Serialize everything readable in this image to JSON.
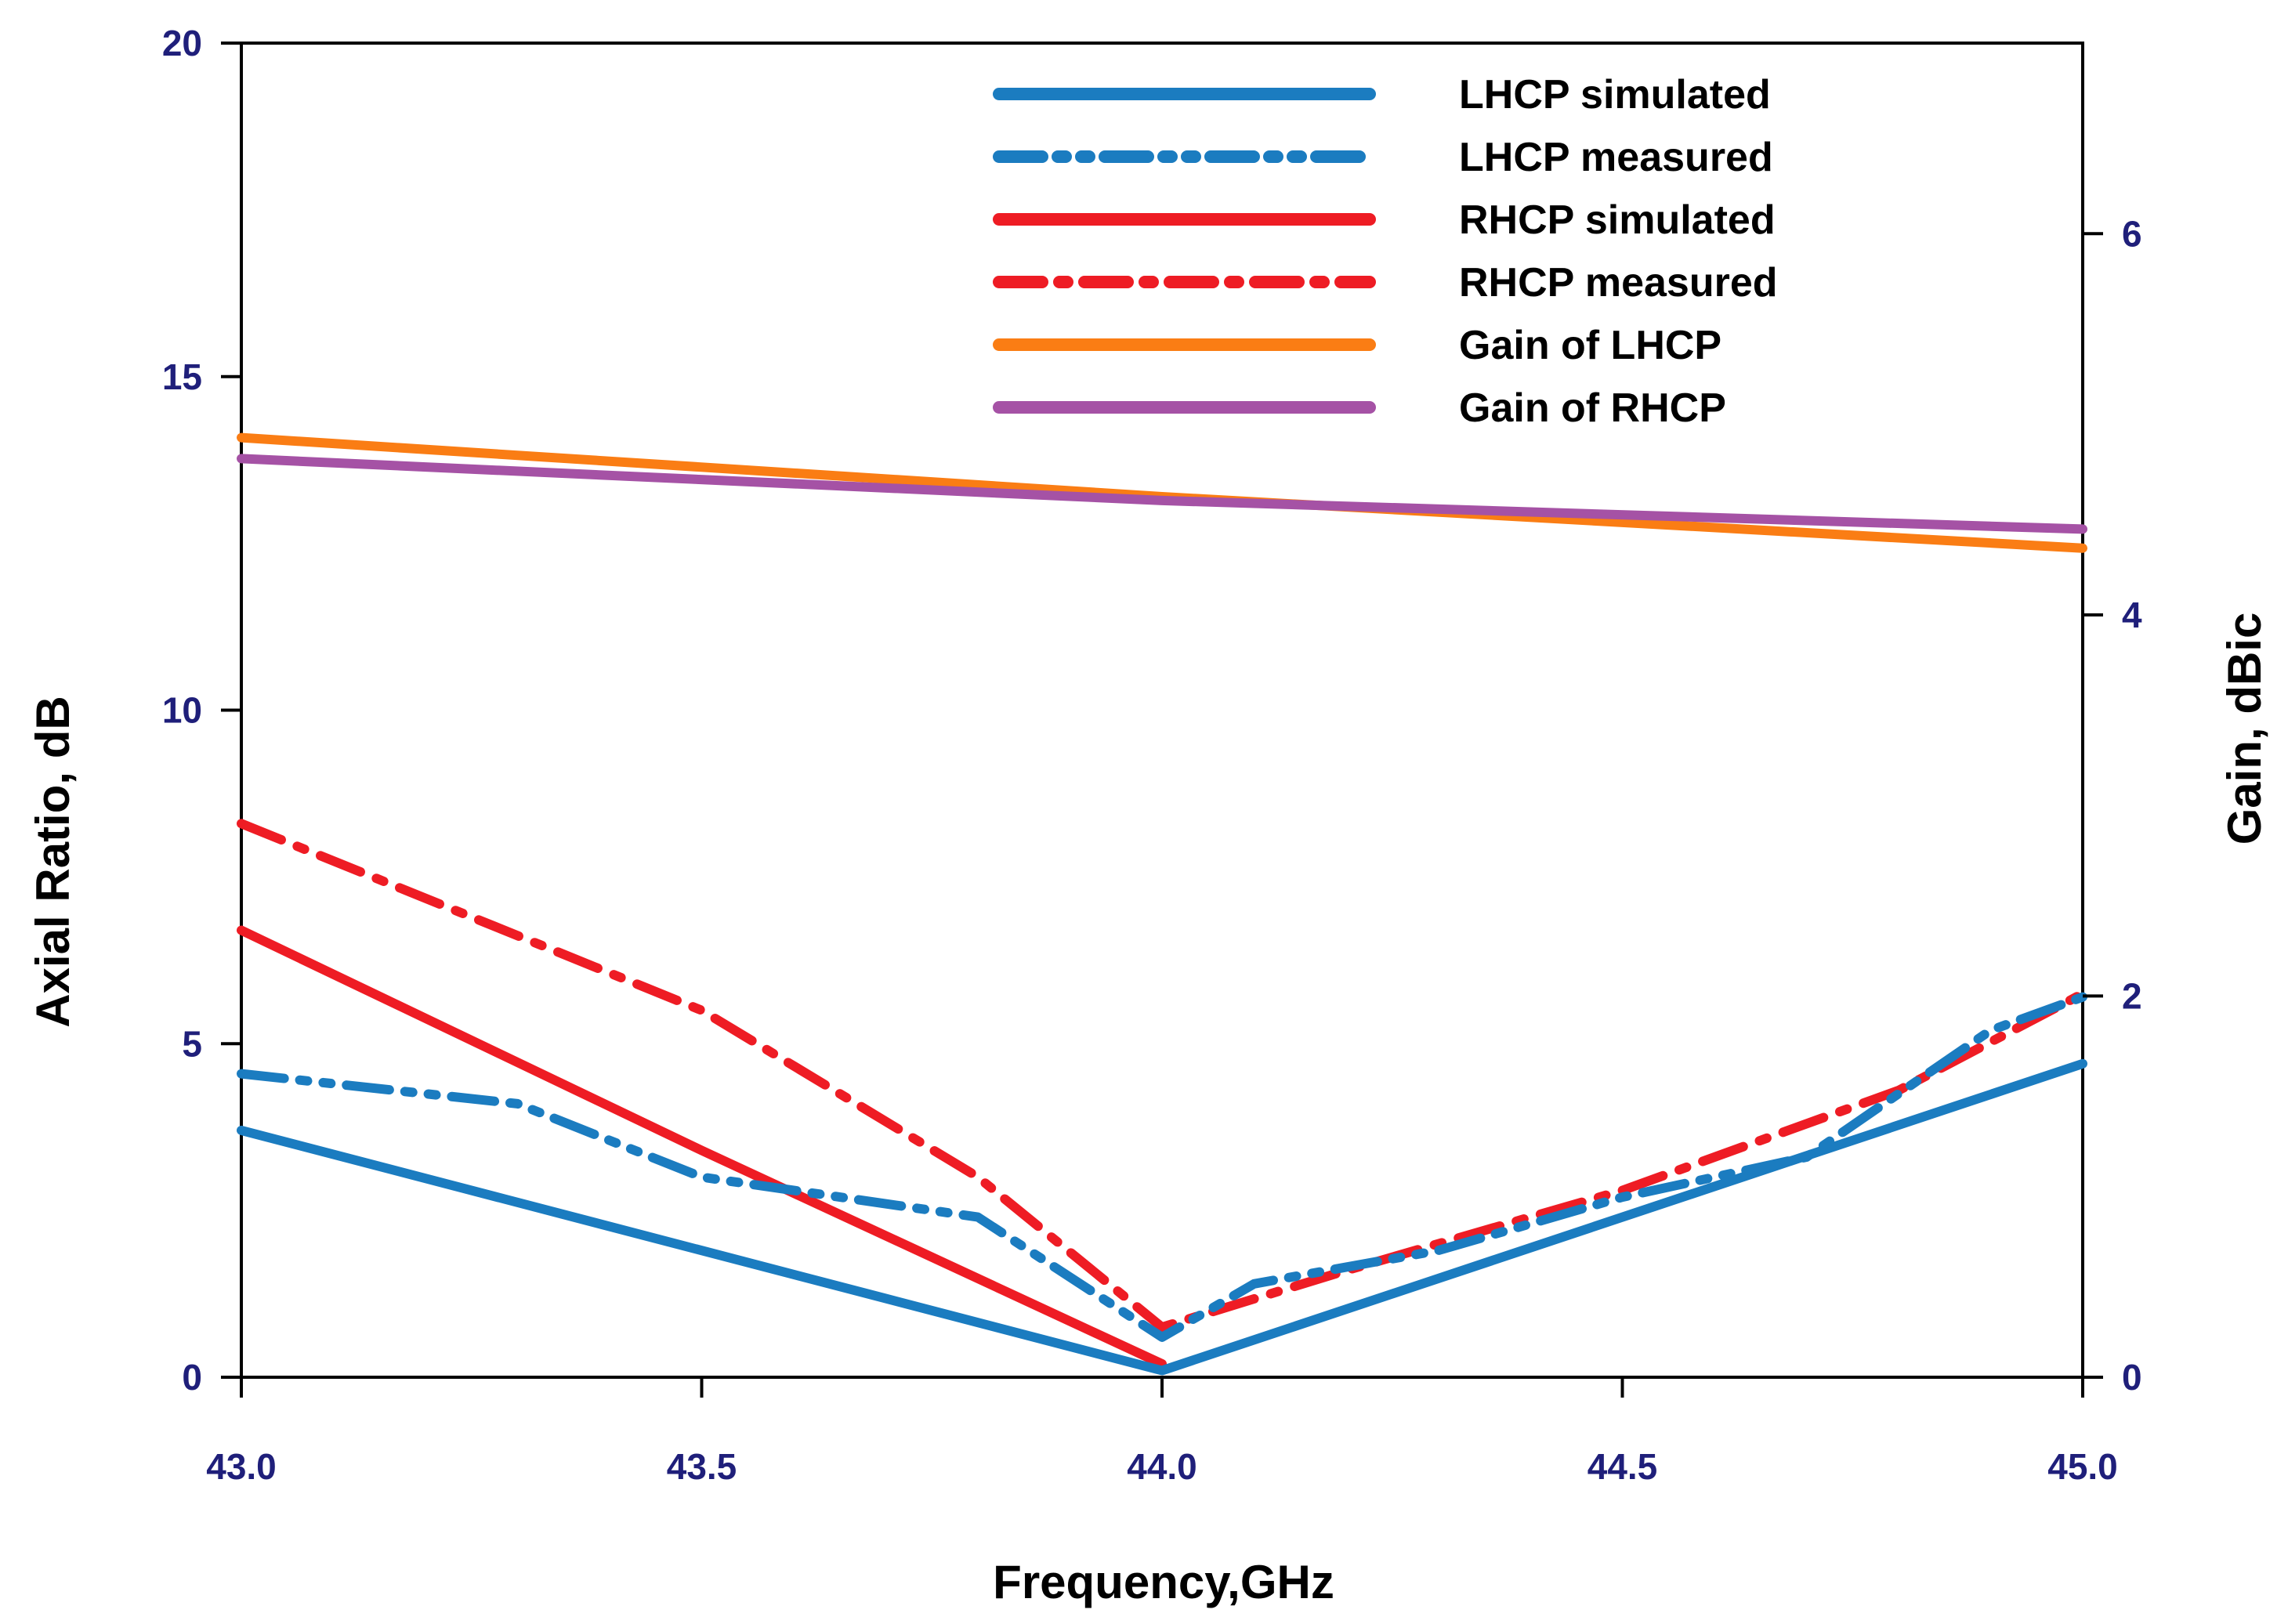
{
  "chart_data": {
    "type": "line",
    "x": [
      43.0,
      43.5,
      44.0,
      44.5,
      45.0
    ],
    "xlim": [
      43.0,
      45.0
    ],
    "xticks": [
      "43.0",
      "43.5",
      "44.0",
      "44.5",
      "45.0"
    ],
    "xlabel": "Frequency,GHz",
    "ylabel_left": "Axial Ratio, dB",
    "ylim_left": [
      0,
      20
    ],
    "yticks_left": [
      "0",
      "5",
      "10",
      "15",
      "20"
    ],
    "ylabel_right": "Gain, dBic",
    "ylim_right": [
      0,
      7
    ],
    "yticks_right": [
      "0",
      "2",
      "4",
      "6"
    ],
    "legend_position": "top-center",
    "series": [
      {
        "name": "LHCP simulated",
        "axis": "left",
        "color": "#1b7cc0",
        "dash": "solid",
        "points": [
          [
            43.0,
            3.7
          ],
          [
            44.0,
            0.1
          ],
          [
            45.0,
            4.7
          ]
        ]
      },
      {
        "name": "LHCP measured",
        "axis": "left",
        "color": "#1b7cc0",
        "dash": "dash-dot-dot",
        "points": [
          [
            43.0,
            4.55
          ],
          [
            43.3,
            4.1
          ],
          [
            43.5,
            3.0
          ],
          [
            43.8,
            2.4
          ],
          [
            44.0,
            0.6
          ],
          [
            44.1,
            1.4
          ],
          [
            44.3,
            1.9
          ],
          [
            44.5,
            2.7
          ],
          [
            44.7,
            3.3
          ],
          [
            44.9,
            5.2
          ],
          [
            45.0,
            5.7
          ]
        ]
      },
      {
        "name": "RHCP simulated",
        "axis": "left",
        "color": "#ee1c24",
        "dash": "solid",
        "points": [
          [
            43.0,
            6.7
          ],
          [
            43.5,
            3.4
          ],
          [
            44.0,
            0.2
          ]
        ]
      },
      {
        "name": "RHCP measured",
        "axis": "left",
        "color": "#ee1c24",
        "dash": "dash-dot",
        "points": [
          [
            43.0,
            8.3
          ],
          [
            43.5,
            5.5
          ],
          [
            43.8,
            3.0
          ],
          [
            44.0,
            0.75
          ],
          [
            44.2,
            1.6
          ],
          [
            44.5,
            2.8
          ],
          [
            44.8,
            4.3
          ],
          [
            45.0,
            5.75
          ]
        ]
      },
      {
        "name": "Gain of LHCP",
        "axis": "right",
        "color": "#fa7d14",
        "dash": "solid",
        "points": [
          [
            43.0,
            4.93
          ],
          [
            44.0,
            4.62
          ],
          [
            45.0,
            4.35
          ]
        ]
      },
      {
        "name": "Gain of RHCP",
        "axis": "right",
        "color": "#a552a5",
        "dash": "solid",
        "points": [
          [
            43.0,
            4.82
          ],
          [
            44.0,
            4.6
          ],
          [
            45.0,
            4.45
          ]
        ]
      }
    ]
  }
}
